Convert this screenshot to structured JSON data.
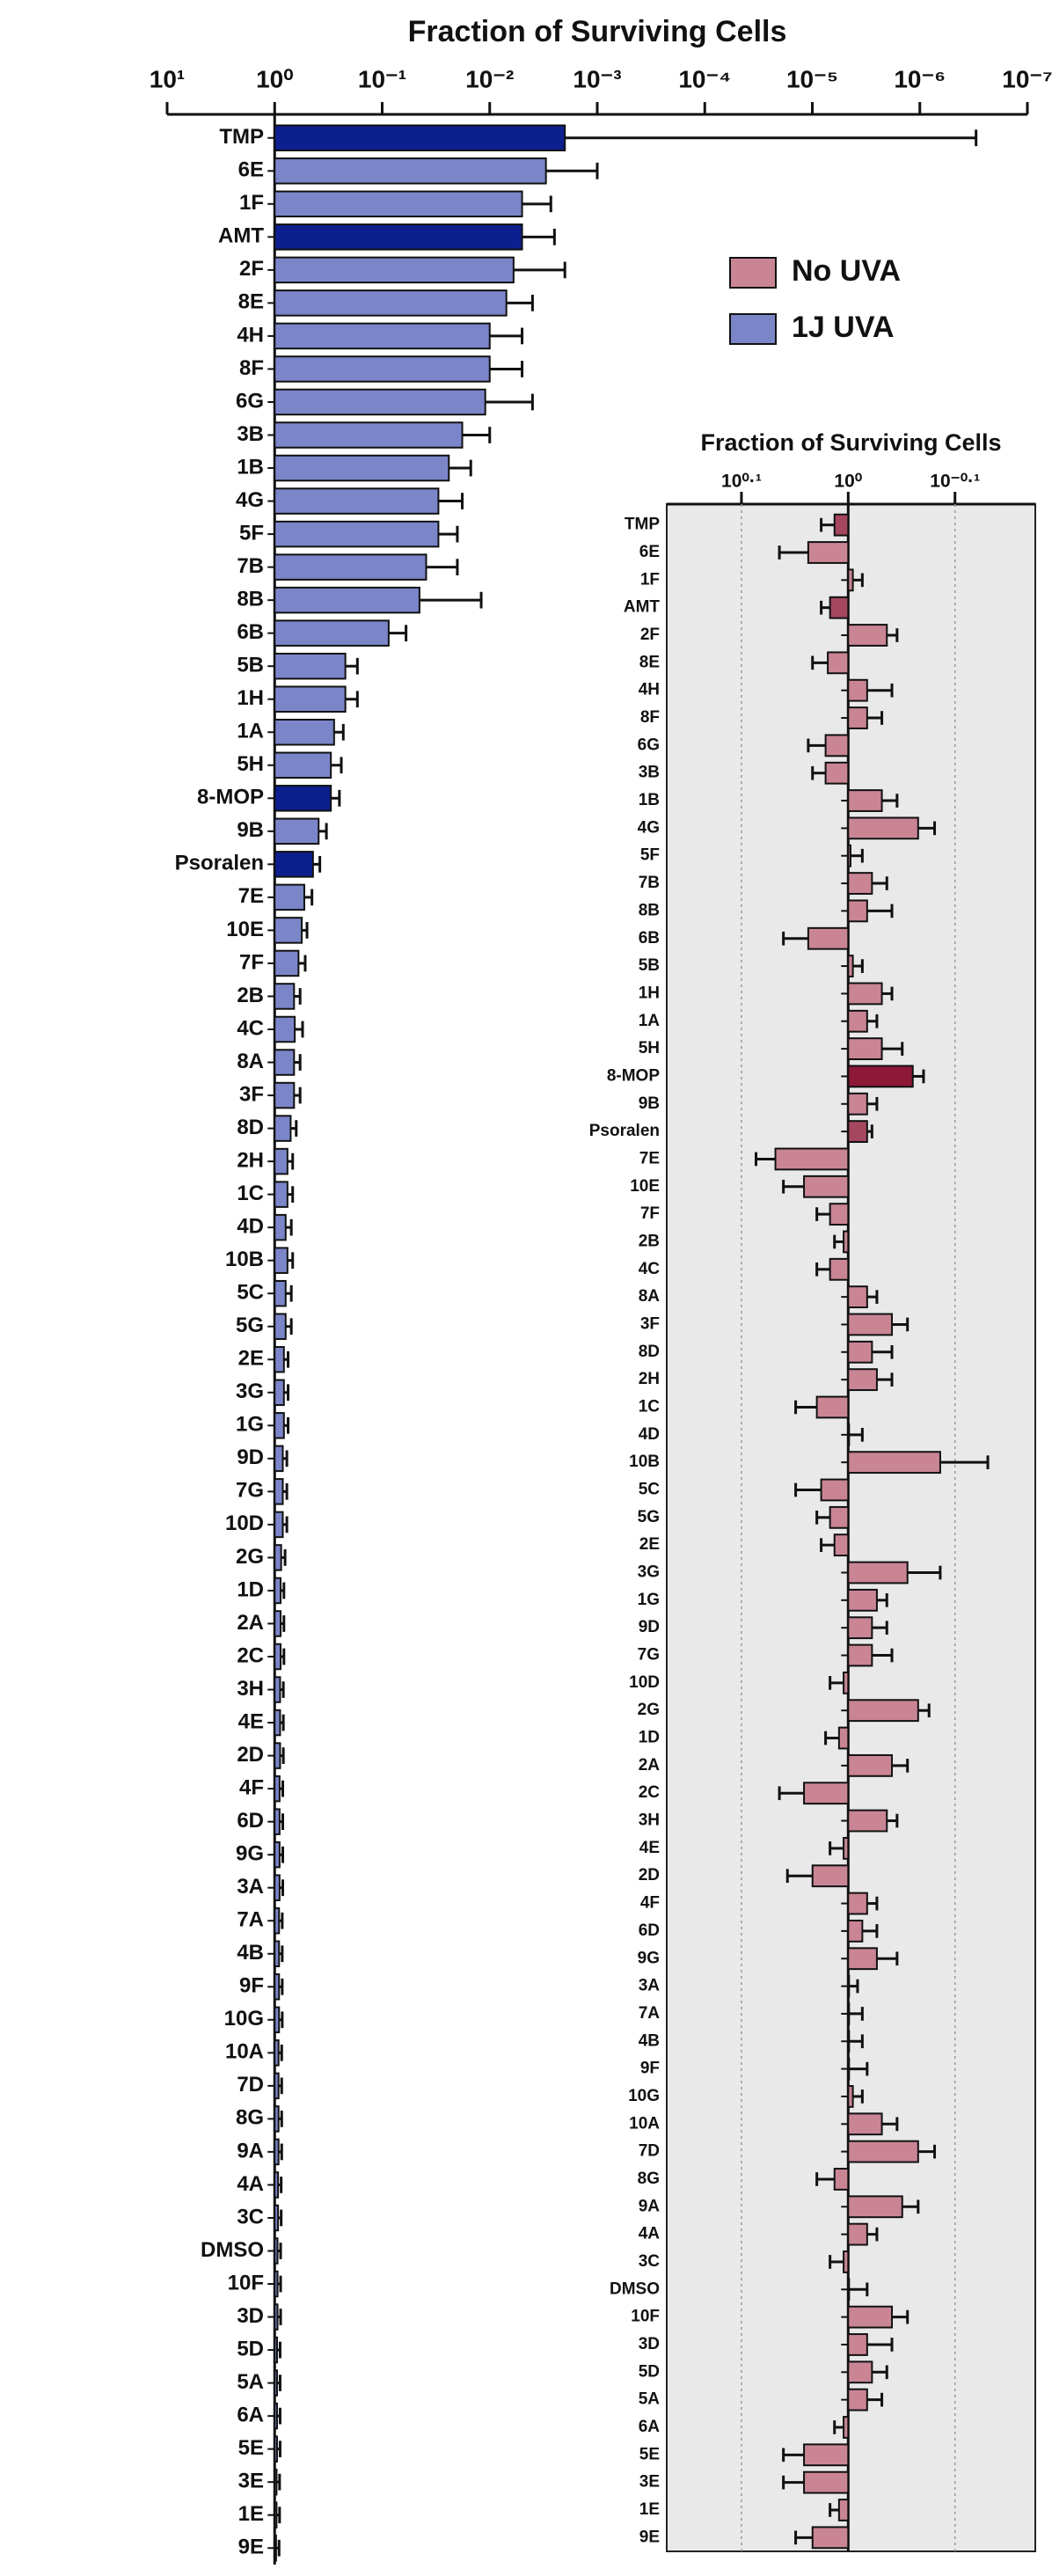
{
  "chart_data": [
    {
      "type": "barh",
      "title": "Fraction of Surviving Cells",
      "log_x": true,
      "xlim": [
        10,
        1e-07
      ],
      "xticks": [
        {
          "value": 10,
          "label": "10¹"
        },
        {
          "value": 1,
          "label": "10⁰"
        },
        {
          "value": 0.1,
          "label": "10⁻¹"
        },
        {
          "value": 0.01,
          "label": "10⁻²"
        },
        {
          "value": 0.001,
          "label": "10⁻³"
        },
        {
          "value": 0.0001,
          "label": "10⁻⁴"
        },
        {
          "value": 1e-05,
          "label": "10⁻⁵"
        },
        {
          "value": 1e-06,
          "label": "10⁻⁶"
        },
        {
          "value": 1e-07,
          "label": "10⁻⁷"
        }
      ],
      "categories": [
        "TMP",
        "6E",
        "1F",
        "AMT",
        "2F",
        "8E",
        "4H",
        "8F",
        "6G",
        "3B",
        "1B",
        "4G",
        "5F",
        "7B",
        "8B",
        "6B",
        "5B",
        "1H",
        "1A",
        "5H",
        "8-MOP",
        "9B",
        "Psoralen",
        "7E",
        "10E",
        "7F",
        "2B",
        "4C",
        "8A",
        "3F",
        "8D",
        "2H",
        "1C",
        "4D",
        "10B",
        "5C",
        "5G",
        "2E",
        "3G",
        "1G",
        "9D",
        "7G",
        "10D",
        "2G",
        "1D",
        "2A",
        "2C",
        "3H",
        "4E",
        "2D",
        "4F",
        "6D",
        "9G",
        "3A",
        "7A",
        "4B",
        "9F",
        "10G",
        "10A",
        "7D",
        "8G",
        "9A",
        "4A",
        "3C",
        "DMSO",
        "10F",
        "3D",
        "5D",
        "5A",
        "6A",
        "5E",
        "3E",
        "1E",
        "9E"
      ],
      "values": [
        0.002,
        0.003,
        0.005,
        0.005,
        0.006,
        0.007,
        0.01,
        0.01,
        0.011,
        0.018,
        0.024,
        0.03,
        0.03,
        0.039,
        0.045,
        0.087,
        0.22,
        0.22,
        0.28,
        0.3,
        0.3,
        0.39,
        0.44,
        0.53,
        0.56,
        0.6,
        0.66,
        0.65,
        0.66,
        0.66,
        0.71,
        0.76,
        0.76,
        0.79,
        0.76,
        0.79,
        0.79,
        0.82,
        0.82,
        0.82,
        0.84,
        0.84,
        0.84,
        0.87,
        0.88,
        0.88,
        0.88,
        0.89,
        0.89,
        0.89,
        0.9,
        0.9,
        0.9,
        0.9,
        0.91,
        0.91,
        0.91,
        0.91,
        0.92,
        0.92,
        0.92,
        0.92,
        0.93,
        0.93,
        0.94,
        0.94,
        0.94,
        0.95,
        0.95,
        0.95,
        0.95,
        0.96,
        0.96,
        0.97
      ],
      "error_ends": [
        3e-07,
        0.001,
        0.0027,
        0.0025,
        0.002,
        0.004,
        0.005,
        0.005,
        0.004,
        0.01,
        0.015,
        0.018,
        0.02,
        0.02,
        0.012,
        0.06,
        0.17,
        0.17,
        0.23,
        0.24,
        0.25,
        0.33,
        0.38,
        0.45,
        0.5,
        0.52,
        0.58,
        0.55,
        0.58,
        0.58,
        0.63,
        0.68,
        0.68,
        0.7,
        0.68,
        0.7,
        0.7,
        0.75,
        0.75,
        0.75,
        0.77,
        0.77,
        0.77,
        0.8,
        0.82,
        0.82,
        0.82,
        0.83,
        0.83,
        0.83,
        0.84,
        0.84,
        0.84,
        0.84,
        0.85,
        0.85,
        0.85,
        0.85,
        0.86,
        0.86,
        0.86,
        0.86,
        0.87,
        0.87,
        0.88,
        0.88,
        0.88,
        0.89,
        0.89,
        0.89,
        0.89,
        0.9,
        0.9,
        0.91
      ],
      "colors": [
        "#0d1f8e",
        "#7b86c9",
        "#7b86c9",
        "#0d1f8e",
        "#7b86c9",
        "#7b86c9",
        "#7b86c9",
        "#7b86c9",
        "#7b86c9",
        "#7b86c9",
        "#7b86c9",
        "#7b86c9",
        "#7b86c9",
        "#7b86c9",
        "#7b86c9",
        "#7b86c9",
        "#7b86c9",
        "#7b86c9",
        "#7b86c9",
        "#7b86c9",
        "#0d1f8e",
        "#7b86c9",
        "#0d1f8e",
        "#7b86c9",
        "#7b86c9",
        "#7b86c9",
        "#7b86c9",
        "#7b86c9",
        "#7b86c9",
        "#7b86c9",
        "#7b86c9",
        "#7b86c9",
        "#7b86c9",
        "#7b86c9",
        "#7b86c9",
        "#7b86c9",
        "#7b86c9",
        "#7b86c9",
        "#7b86c9",
        "#7b86c9",
        "#7b86c9",
        "#7b86c9",
        "#7b86c9",
        "#7b86c9",
        "#7b86c9",
        "#7b86c9",
        "#7b86c9",
        "#7b86c9",
        "#7b86c9",
        "#7b86c9",
        "#7b86c9",
        "#7b86c9",
        "#7b86c9",
        "#7b86c9",
        "#7b86c9",
        "#7b86c9",
        "#7b86c9",
        "#7b86c9",
        "#7b86c9",
        "#7b86c9",
        "#7b86c9",
        "#7b86c9",
        "#7b86c9",
        "#7b86c9",
        "#7b86c9",
        "#7b86c9",
        "#7b86c9",
        "#7b86c9",
        "#7b86c9",
        "#7b86c9",
        "#7b86c9",
        "#7b86c9",
        "#7b86c9",
        "#7b86c9"
      ],
      "legend_entries": [
        {
          "label": "No UVA",
          "color": "#c98594"
        },
        {
          "label": "1J UVA",
          "color": "#7b86c9"
        }
      ]
    },
    {
      "type": "barh",
      "title": "Fraction of Surviving Cells",
      "log_x": true,
      "grid": true,
      "xlim": [
        1.479,
        0.668
      ],
      "xticks": [
        {
          "value": 1.2589,
          "label": "10⁰·¹"
        },
        {
          "value": 1,
          "label": "10⁰"
        },
        {
          "value": 0.7943,
          "label": "10⁻⁰·¹"
        }
      ],
      "categories": [
        "TMP",
        "6E",
        "1F",
        "AMT",
        "2F",
        "8E",
        "4H",
        "8F",
        "6G",
        "3B",
        "1B",
        "4G",
        "5F",
        "7B",
        "8B",
        "6B",
        "5B",
        "1H",
        "1A",
        "5H",
        "8-MOP",
        "9B",
        "Psoralen",
        "7E",
        "10E",
        "7F",
        "2B",
        "4C",
        "8A",
        "3F",
        "8D",
        "2H",
        "1C",
        "4D",
        "10B",
        "5C",
        "5G",
        "2E",
        "3G",
        "1G",
        "9D",
        "7G",
        "10D",
        "2G",
        "1D",
        "2A",
        "2C",
        "3H",
        "4E",
        "2D",
        "4F",
        "6D",
        "9G",
        "3A",
        "7A",
        "4B",
        "9F",
        "10G",
        "10A",
        "7D",
        "8G",
        "9A",
        "4A",
        "3C",
        "DMSO",
        "10F",
        "3D",
        "5D",
        "5A",
        "6A",
        "5E",
        "3E",
        "1E",
        "9E"
      ],
      "values": [
        1.03,
        1.09,
        0.99,
        1.04,
        0.92,
        1.045,
        0.96,
        0.96,
        1.05,
        1.05,
        0.93,
        0.86,
        0.995,
        0.95,
        0.96,
        1.09,
        0.99,
        0.93,
        0.96,
        0.93,
        0.87,
        0.96,
        0.96,
        1.17,
        1.1,
        1.04,
        1.01,
        1.04,
        0.96,
        0.91,
        0.95,
        0.94,
        1.07,
        1.0,
        0.82,
        1.06,
        1.04,
        1.03,
        0.88,
        0.94,
        0.95,
        0.95,
        1.01,
        0.86,
        1.02,
        0.91,
        1.1,
        0.92,
        1.01,
        1.08,
        0.96,
        0.97,
        0.94,
        1.0,
        1.0,
        1.0,
        1.0,
        0.99,
        0.93,
        0.86,
        1.03,
        0.89,
        0.96,
        1.01,
        1.0,
        0.91,
        0.96,
        0.95,
        0.96,
        1.01,
        1.1,
        1.1,
        1.02,
        1.08
      ],
      "error_ends": [
        1.06,
        1.16,
        0.97,
        1.06,
        0.9,
        1.08,
        0.91,
        0.93,
        1.09,
        1.08,
        0.9,
        0.83,
        0.97,
        0.92,
        0.91,
        1.15,
        0.97,
        0.91,
        0.94,
        0.89,
        0.85,
        0.94,
        0.95,
        1.22,
        1.15,
        1.07,
        1.03,
        1.07,
        0.94,
        0.88,
        0.91,
        0.91,
        1.12,
        0.97,
        0.74,
        1.12,
        1.07,
        1.06,
        0.82,
        0.92,
        0.92,
        0.91,
        1.04,
        0.84,
        1.05,
        0.88,
        1.16,
        0.9,
        1.04,
        1.14,
        0.94,
        0.94,
        0.9,
        0.98,
        0.97,
        0.97,
        0.96,
        0.97,
        0.9,
        0.83,
        1.07,
        0.86,
        0.94,
        1.04,
        0.96,
        0.88,
        0.91,
        0.92,
        0.93,
        1.03,
        1.15,
        1.15,
        1.04,
        1.12
      ],
      "colors": [
        "#a5475f",
        "#c98594",
        "#c98594",
        "#a5475f",
        "#c98594",
        "#c98594",
        "#c98594",
        "#c98594",
        "#c98594",
        "#c98594",
        "#c98594",
        "#c98594",
        "#c98594",
        "#c98594",
        "#c98594",
        "#c98594",
        "#c98594",
        "#c98594",
        "#c98594",
        "#c98594",
        "#8e1838",
        "#c98594",
        "#a5475f",
        "#c98594",
        "#c98594",
        "#c98594",
        "#c98594",
        "#c98594",
        "#c98594",
        "#c98594",
        "#c98594",
        "#c98594",
        "#c98594",
        "#c98594",
        "#c98594",
        "#c98594",
        "#c98594",
        "#c98594",
        "#c98594",
        "#c98594",
        "#c98594",
        "#c98594",
        "#c98594",
        "#c98594",
        "#c98594",
        "#c98594",
        "#c98594",
        "#c98594",
        "#c98594",
        "#c98594",
        "#c98594",
        "#c98594",
        "#c98594",
        "#c98594",
        "#c98594",
        "#c98594",
        "#c98594",
        "#c98594",
        "#c98594",
        "#c98594",
        "#c98594",
        "#c98594",
        "#c98594",
        "#c98594",
        "#c98594",
        "#c98594",
        "#c98594",
        "#c98594",
        "#c98594",
        "#c98594",
        "#c98594",
        "#c98594",
        "#c98594",
        "#c98594"
      ]
    }
  ]
}
